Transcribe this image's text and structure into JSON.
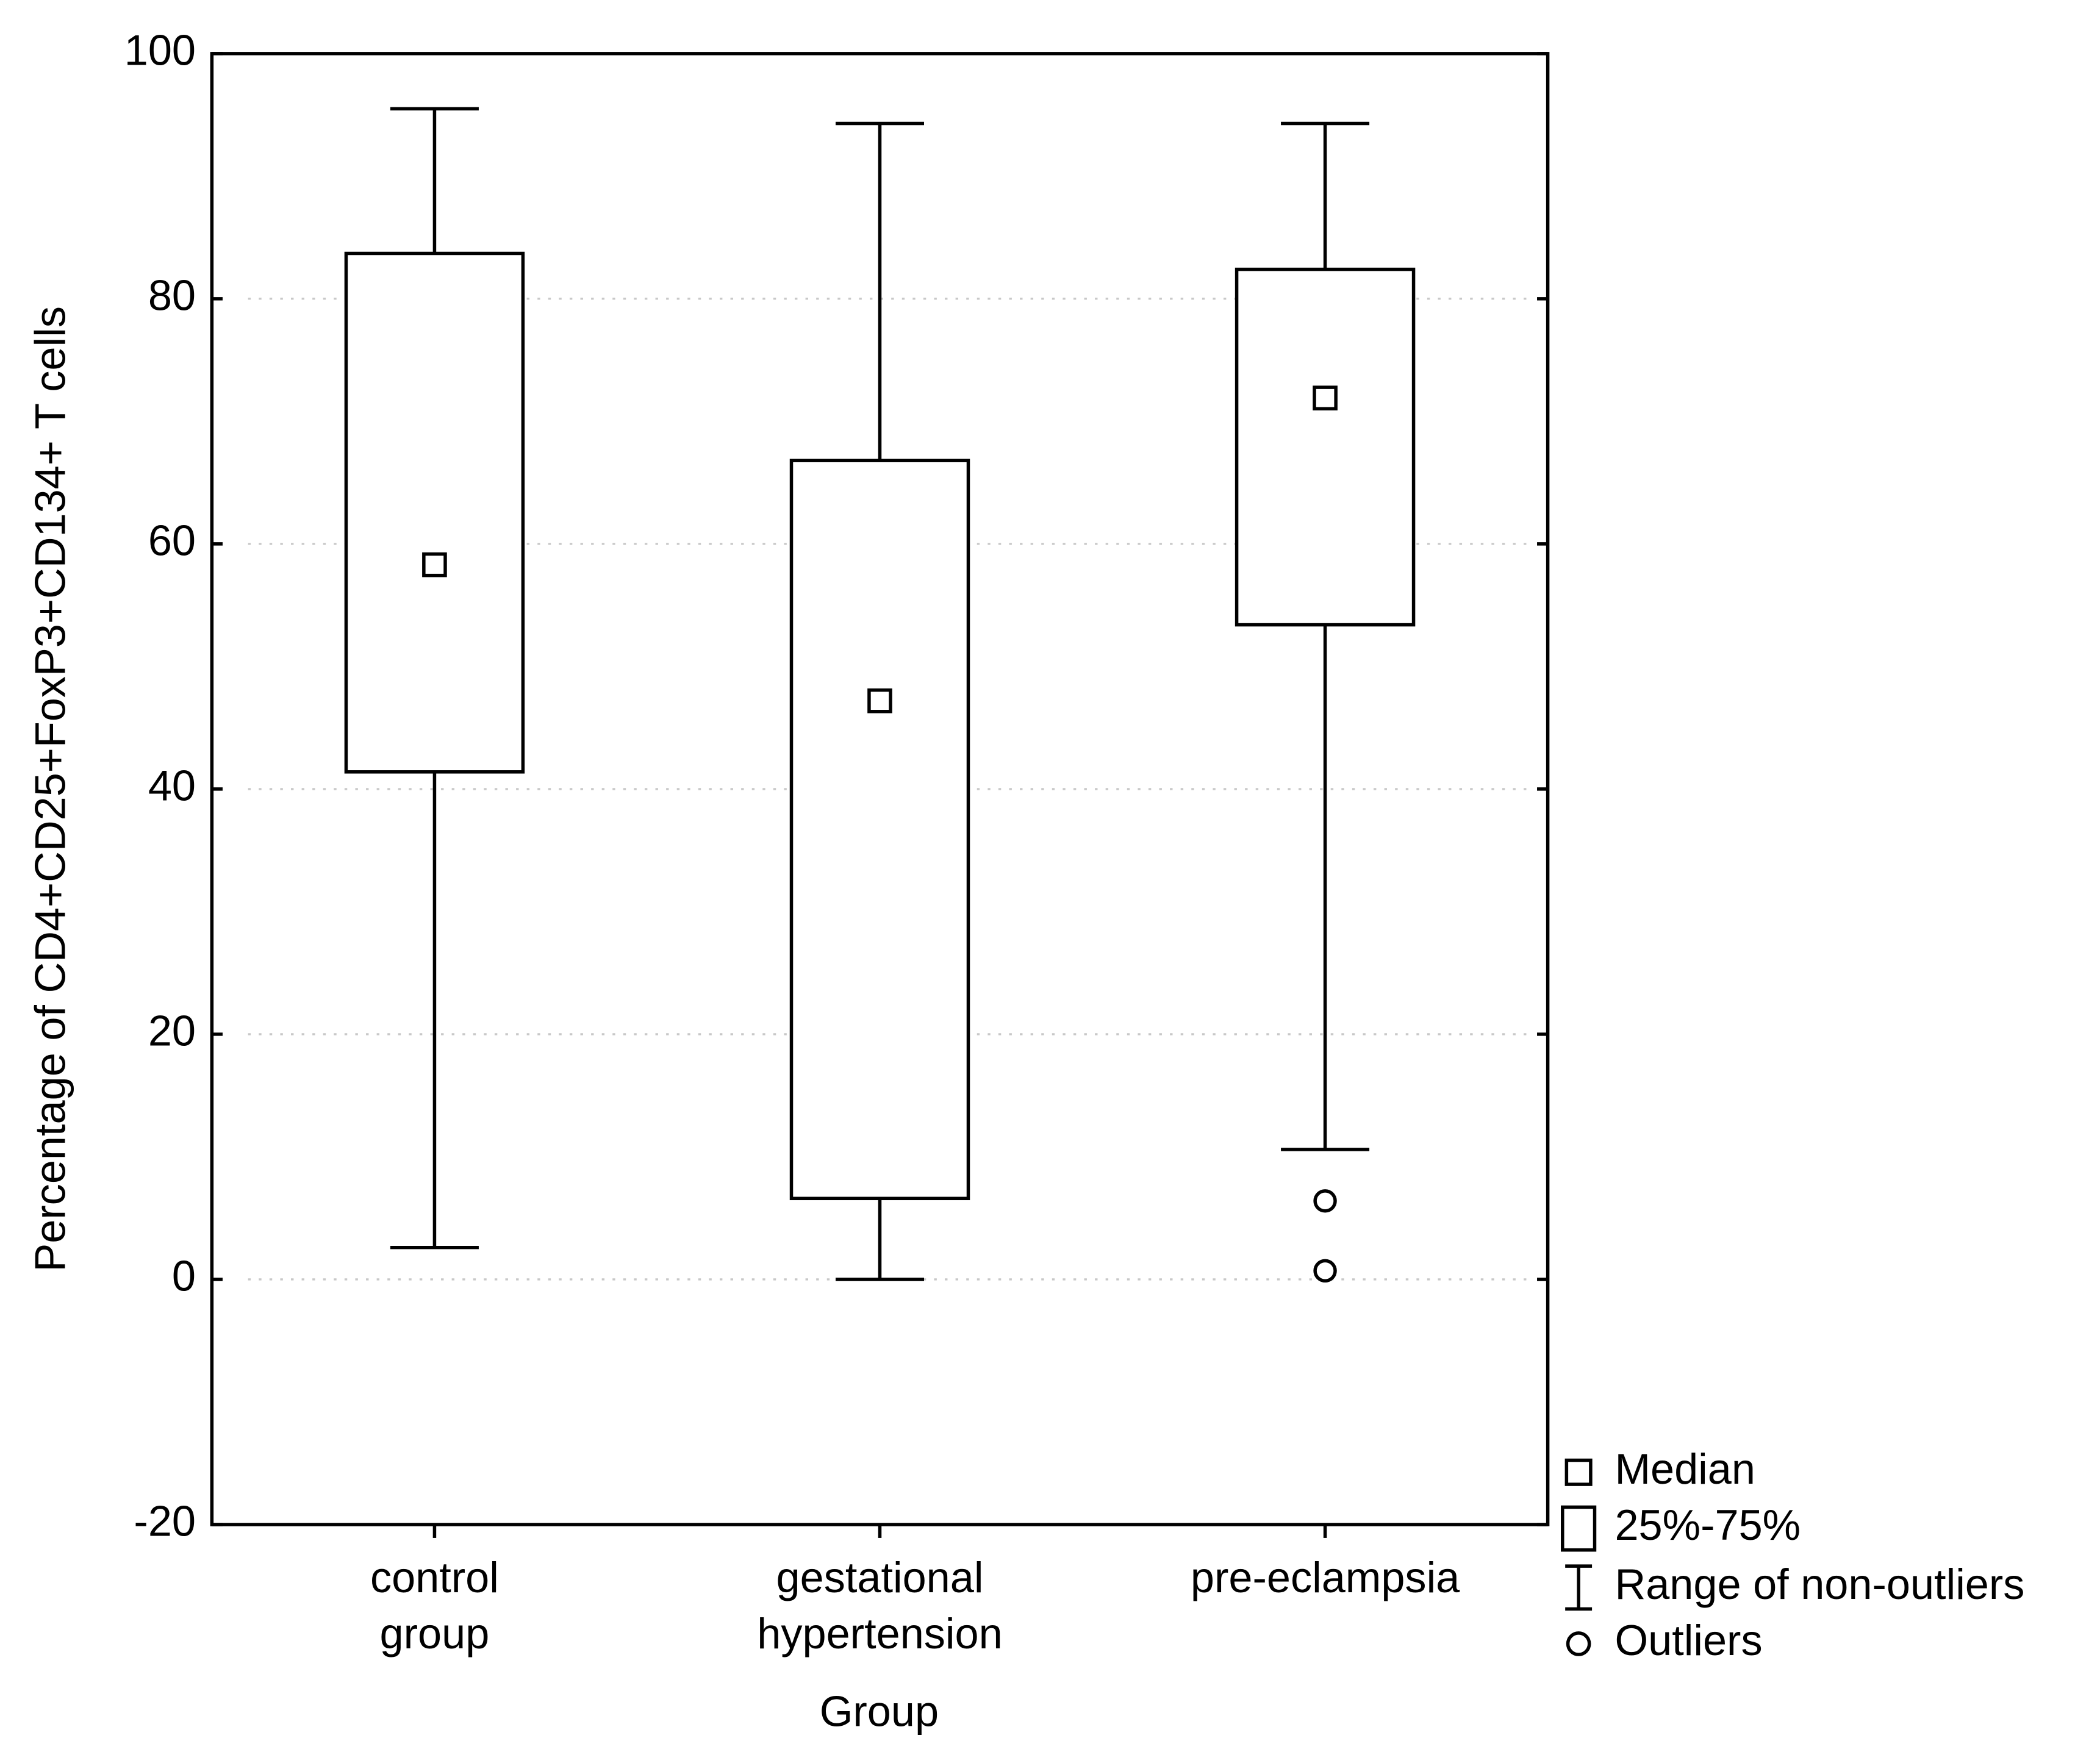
{
  "chart_data": {
    "type": "box",
    "y_label": "Percentage of CD4+CD25+FoxP3+CD134+ T cells",
    "x_label": "Group",
    "categories": [
      [
        "control",
        "group"
      ],
      [
        "gestational",
        "hypertension"
      ],
      [
        "pre-eclampsia"
      ]
    ],
    "boxes": [
      {
        "whisker_low": 2.6,
        "q1": 41.4,
        "median": 58.3,
        "q3": 83.7,
        "whisker_high": 95.5,
        "outliers": []
      },
      {
        "whisker_low": 0,
        "q1": 6.6,
        "median": 47.2,
        "q3": 66.8,
        "whisker_high": 94.3,
        "outliers": []
      },
      {
        "whisker_low": 10.6,
        "q1": 53.4,
        "median": 71.9,
        "q3": 82.4,
        "whisker_high": 94.3,
        "outliers": [
          6.4,
          0.7
        ]
      }
    ],
    "ylim": [
      -20,
      100
    ],
    "yticks": [
      -20,
      0,
      20,
      40,
      60,
      80,
      100
    ],
    "grid": true,
    "color": "#000000",
    "legend": [
      "Median",
      "25%-75%",
      "Range of non-outliers",
      "Outliers"
    ],
    "legend_position": "bottom-right-outside"
  }
}
